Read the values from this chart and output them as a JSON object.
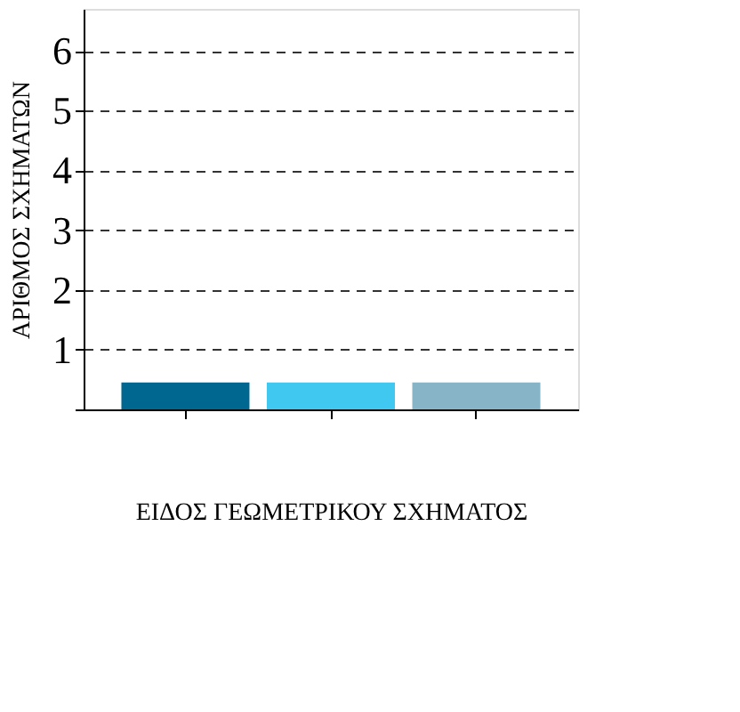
{
  "chart_data": {
    "type": "bar",
    "xlabel": "ΕΙΔΟΣ ΓΕΩΜΕΤΡΙΚΟΥ ΣΧΗΜΑΤΟΣ",
    "ylabel": "ΑΡΙΘΜΟΣ ΣΧΗΜΑΤΩΝ",
    "categories": [
      null,
      null,
      null
    ],
    "values": [
      0.45,
      0.45,
      0.45
    ],
    "colors": [
      "#006890",
      "#40c8f0",
      "#88b4c8"
    ],
    "ylim": [
      0,
      6.7
    ],
    "yticks": [
      {
        "value": 0,
        "label": null
      },
      1,
      2,
      3,
      4,
      5,
      6
    ],
    "grid": "y",
    "tick_labels": "y"
  }
}
